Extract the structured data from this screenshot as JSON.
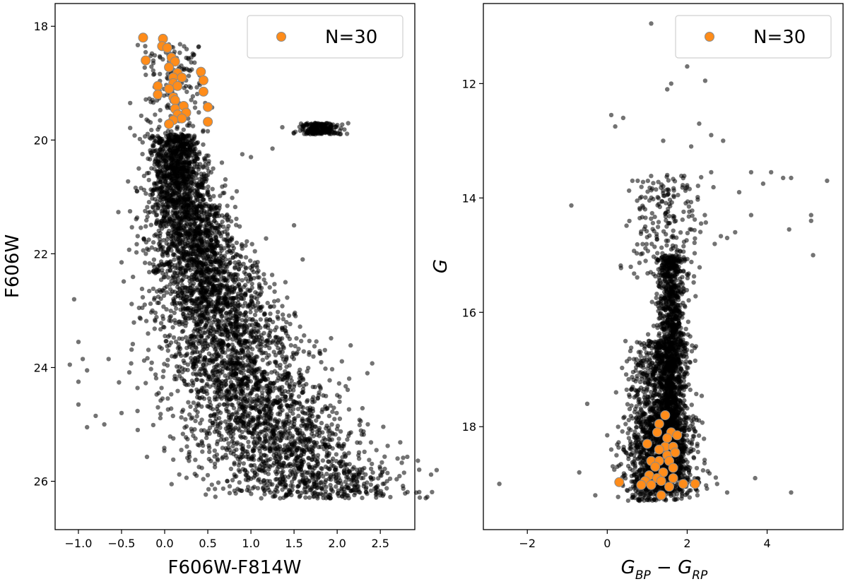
{
  "chart_data": [
    {
      "type": "scatter",
      "xlabel": "F606W-F814W",
      "ylabel": "F606W",
      "xlim": [
        -1.27,
        2.9
      ],
      "ylim": [
        26.85,
        17.6
      ],
      "y_inverted": true,
      "grid": false,
      "legend": {
        "position": "top-right",
        "entries": [
          "N=30"
        ]
      },
      "x_ticks": [
        {
          "value": -1.0,
          "label": "−1.0"
        },
        {
          "value": -0.5,
          "label": "−0.5"
        },
        {
          "value": 0.0,
          "label": "0.0"
        },
        {
          "value": 0.5,
          "label": "0.5"
        },
        {
          "value": 1.0,
          "label": "1.0"
        },
        {
          "value": 1.5,
          "label": "1.5"
        },
        {
          "value": 2.0,
          "label": "2.0"
        },
        {
          "value": 2.5,
          "label": "2.5"
        }
      ],
      "y_ticks": [
        {
          "value": 18,
          "label": "18"
        },
        {
          "value": 20,
          "label": "20"
        },
        {
          "value": 22,
          "label": "22"
        },
        {
          "value": 24,
          "label": "24"
        },
        {
          "value": 26,
          "label": "26"
        }
      ],
      "series": [
        {
          "name": "",
          "color": "#000000",
          "marker_alpha": 0.55,
          "main_sequence_ridge": [
            [
              0.1,
              19.9
            ],
            [
              0.2,
              21.0
            ],
            [
              0.35,
              22.0
            ],
            [
              0.6,
              23.0
            ],
            [
              0.85,
              24.0
            ],
            [
              1.15,
              25.0
            ],
            [
              1.5,
              25.7
            ],
            [
              1.8,
              26.1
            ]
          ],
          "outliers": [
            [
              -1.05,
              22.8
            ],
            [
              -1.0,
              23.55
            ],
            [
              -1.1,
              23.95
            ],
            [
              -0.95,
              23.85
            ],
            [
              -0.9,
              24.05
            ],
            [
              -1.0,
              24.25
            ],
            [
              -1.0,
              24.65
            ],
            [
              -0.9,
              25.05
            ],
            [
              -0.8,
              24.85
            ],
            [
              -0.7,
              25.0
            ],
            [
              -0.65,
              23.85
            ],
            [
              -0.5,
              24.8
            ],
            [
              -0.5,
              22.15
            ],
            [
              -0.4,
              19.35
            ],
            [
              -0.3,
              20.5
            ],
            [
              -0.2,
              21.35
            ],
            [
              0.08,
              26.05
            ],
            [
              2.7,
              25.6
            ],
            [
              2.35,
              24.1
            ],
            [
              1.0,
              20.3
            ],
            [
              0.9,
              20.25
            ],
            [
              1.25,
              20.15
            ],
            [
              0.7,
              20.8
            ],
            [
              1.5,
              21.5
            ],
            [
              1.6,
              22.1
            ],
            [
              1.4,
              22.5
            ]
          ]
        },
        {
          "name": "N=30",
          "color": "#ff8c1a",
          "edge_color": "#8a8a8a",
          "points": [
            [
              -0.25,
              18.2
            ],
            [
              -0.02,
              18.22
            ],
            [
              -0.03,
              18.35
            ],
            [
              0.03,
              18.38
            ],
            [
              -0.22,
              18.6
            ],
            [
              0.08,
              18.55
            ],
            [
              0.12,
              18.62
            ],
            [
              0.05,
              18.72
            ],
            [
              0.15,
              18.82
            ],
            [
              0.1,
              18.9
            ],
            [
              0.2,
              18.9
            ],
            [
              0.42,
              18.8
            ],
            [
              0.45,
              18.95
            ],
            [
              0.1,
              19.0
            ],
            [
              0.15,
              19.05
            ],
            [
              -0.08,
              19.05
            ],
            [
              0.05,
              19.1
            ],
            [
              -0.08,
              19.2
            ],
            [
              0.1,
              19.25
            ],
            [
              0.12,
              19.3
            ],
            [
              0.45,
              19.15
            ],
            [
              0.22,
              19.4
            ],
            [
              0.5,
              19.42
            ],
            [
              0.12,
              19.45
            ],
            [
              0.25,
              19.52
            ],
            [
              0.15,
              19.55
            ],
            [
              0.2,
              19.62
            ],
            [
              0.1,
              19.65
            ],
            [
              0.05,
              19.72
            ],
            [
              0.5,
              19.68
            ]
          ]
        }
      ]
    },
    {
      "type": "scatter",
      "xlabel": "G_BP − G_RP",
      "ylabel": "G",
      "xlim": [
        -3.1,
        5.9
      ],
      "ylim": [
        19.8,
        10.6
      ],
      "y_inverted": true,
      "grid": false,
      "legend": {
        "position": "top-right",
        "entries": [
          "N=30"
        ]
      },
      "x_ticks": [
        {
          "value": -2,
          "label": "−2"
        },
        {
          "value": 0,
          "label": "0"
        },
        {
          "value": 2,
          "label": "2"
        },
        {
          "value": 4,
          "label": "4"
        }
      ],
      "y_ticks": [
        {
          "value": 12,
          "label": "12"
        },
        {
          "value": 14,
          "label": "14"
        },
        {
          "value": 16,
          "label": "16"
        },
        {
          "value": 18,
          "label": "18"
        }
      ],
      "series": [
        {
          "name": "",
          "color": "#000000",
          "marker_alpha": 0.55,
          "outliers": [
            [
              1.1,
              10.95
            ],
            [
              2.0,
              11.0
            ],
            [
              3.0,
              11.5
            ],
            [
              2.0,
              11.7
            ],
            [
              1.6,
              12.0
            ],
            [
              1.5,
              12.1
            ],
            [
              2.45,
              11.95
            ],
            [
              1.5,
              13.6
            ],
            [
              1.4,
              13.0
            ],
            [
              2.1,
              13.1
            ],
            [
              2.3,
              12.7
            ],
            [
              2.6,
              12.9
            ],
            [
              2.9,
              13.0
            ],
            [
              0.1,
              12.55
            ],
            [
              0.2,
              12.75
            ],
            [
              0.4,
              12.6
            ],
            [
              2.6,
              13.55
            ],
            [
              3.3,
              13.9
            ],
            [
              3.6,
              13.55
            ],
            [
              3.9,
              13.75
            ],
            [
              4.1,
              13.55
            ],
            [
              4.4,
              13.65
            ],
            [
              4.6,
              13.65
            ],
            [
              5.5,
              13.7
            ],
            [
              5.1,
              14.3
            ],
            [
              5.1,
              14.4
            ],
            [
              4.55,
              14.55
            ],
            [
              5.15,
              15.0
            ],
            [
              3.6,
              14.3
            ],
            [
              3.2,
              14.6
            ],
            [
              3.0,
              14.7
            ],
            [
              -0.5,
              17.6
            ],
            [
              -0.7,
              18.8
            ],
            [
              -2.7,
              19.0
            ],
            [
              -0.3,
              19.2
            ],
            [
              3.7,
              18.9
            ],
            [
              4.6,
              19.15
            ],
            [
              3.0,
              19.15
            ],
            [
              0.0,
              18.15
            ],
            [
              0.1,
              18.4
            ]
          ]
        },
        {
          "name": "N=30",
          "color": "#ff8c1a",
          "edge_color": "#8a8a8a",
          "points": [
            [
              1.45,
              17.8
            ],
            [
              1.3,
              17.95
            ],
            [
              1.25,
              18.1
            ],
            [
              1.6,
              18.1
            ],
            [
              1.5,
              18.2
            ],
            [
              1.75,
              18.15
            ],
            [
              1.0,
              18.3
            ],
            [
              1.45,
              18.35
            ],
            [
              1.65,
              18.35
            ],
            [
              1.3,
              18.4
            ],
            [
              1.5,
              18.5
            ],
            [
              1.7,
              18.45
            ],
            [
              1.1,
              18.6
            ],
            [
              1.3,
              18.6
            ],
            [
              1.55,
              18.6
            ],
            [
              1.2,
              18.7
            ],
            [
              1.65,
              18.72
            ],
            [
              1.4,
              18.8
            ],
            [
              1.05,
              18.85
            ],
            [
              1.25,
              18.9
            ],
            [
              1.65,
              18.9
            ],
            [
              0.95,
              18.95
            ],
            [
              1.35,
              18.95
            ],
            [
              0.3,
              18.97
            ],
            [
              0.85,
              19.02
            ],
            [
              1.1,
              19.02
            ],
            [
              1.9,
              19.0
            ],
            [
              2.2,
              19.0
            ],
            [
              1.55,
              19.05
            ],
            [
              1.35,
              19.2
            ]
          ]
        }
      ]
    }
  ]
}
